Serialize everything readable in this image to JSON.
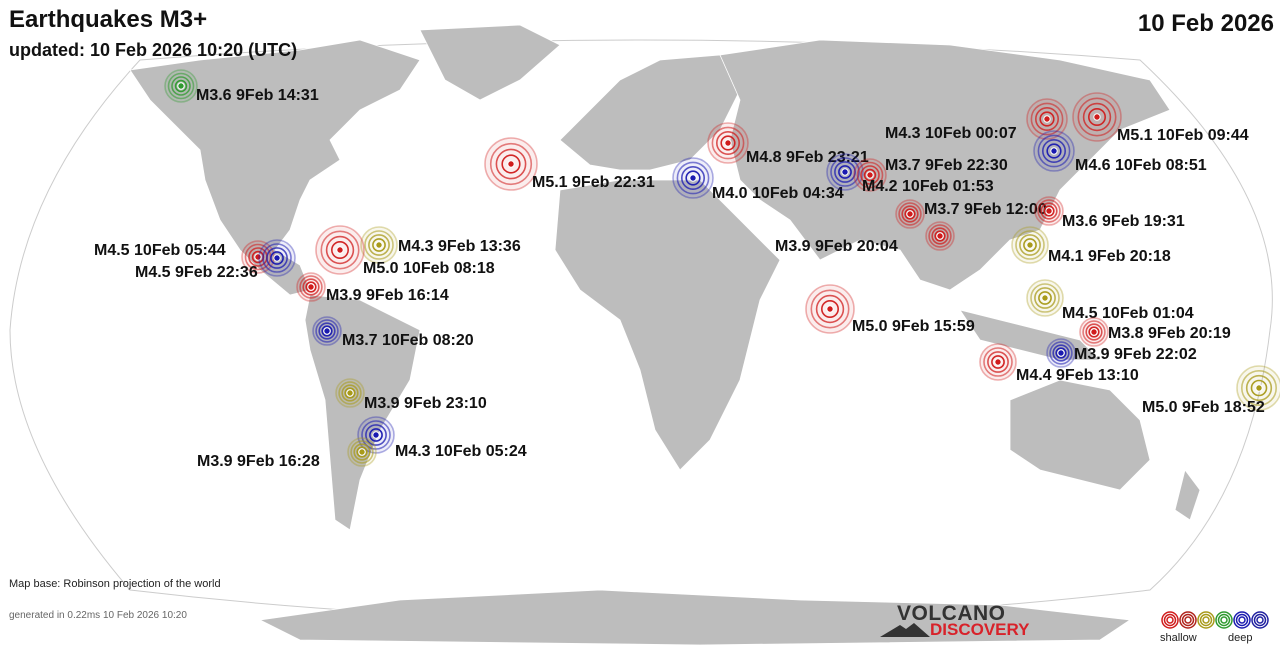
{
  "header": {
    "title": "Earthquakes M3+",
    "updated": "updated: 10 Feb 2026 10:20 (UTC)",
    "date": "10 Feb 2026"
  },
  "footer": {
    "map_base": "Map base: Robinson projection of the world",
    "generated": "generated in 0.22ms 10 Feb 2026 10:20"
  },
  "logo": {
    "line1": "VOLCANO",
    "line2": "DISCOVERY"
  },
  "legend": {
    "shallow": "shallow",
    "deep": "deep",
    "depth_colors": [
      "#d01c1c",
      "#b0231c",
      "#a89a1a",
      "#2f9a2f",
      "#1a1ab0",
      "#2020a0"
    ]
  },
  "colors": {
    "land": "#bdbdbd",
    "ocean": "#ffffff",
    "red": "#d01c1c",
    "olive": "#a89a1a",
    "blue": "#1a1ab0",
    "green": "#2f9a2f"
  },
  "quakes": [
    {
      "label": "M3.6  9Feb 14:31",
      "color": "green"
    },
    {
      "label": "M5.1  9Feb 22:31",
      "color": "red"
    },
    {
      "label": "M4.8  9Feb 23:21",
      "color": "red"
    },
    {
      "label": "M4.0 10Feb 04:34",
      "color": "blue"
    },
    {
      "label": "M4.3 10Feb 00:07",
      "color": "red"
    },
    {
      "label": "M3.7  9Feb 22:30",
      "color": "blue"
    },
    {
      "label": "M4.2 10Feb 01:53",
      "color": "red"
    },
    {
      "label": "M5.1 10Feb 09:44",
      "color": "red"
    },
    {
      "label": "M4.6 10Feb 08:51",
      "color": "blue"
    },
    {
      "label": "M3.7  9Feb 12:00",
      "color": "red"
    },
    {
      "label": "M3.6  9Feb 19:31",
      "color": "red"
    },
    {
      "label": "M3.9  9Feb 20:04",
      "color": "red"
    },
    {
      "label": "M4.1  9Feb 20:18",
      "color": "olive"
    },
    {
      "label": "M4.5 10Feb 05:44",
      "color": "red"
    },
    {
      "label": "M4.5  9Feb 22:36",
      "color": "blue"
    },
    {
      "label": "M4.3  9Feb 13:36",
      "color": "olive"
    },
    {
      "label": "M5.0 10Feb 08:18",
      "color": "red"
    },
    {
      "label": "M3.9  9Feb 16:14",
      "color": "red"
    },
    {
      "label": "M3.7 10Feb 08:20",
      "color": "blue"
    },
    {
      "label": "M5.0  9Feb 15:59",
      "color": "red"
    },
    {
      "label": "M4.5 10Feb 01:04",
      "color": "olive"
    },
    {
      "label": "M3.8  9Feb 20:19",
      "color": "red"
    },
    {
      "label": "M3.9  9Feb 22:02",
      "color": "blue"
    },
    {
      "label": "M4.4  9Feb 13:10",
      "color": "red"
    },
    {
      "label": "M5.0  9Feb 18:52",
      "color": "olive"
    },
    {
      "label": "M3.9  9Feb 23:10",
      "color": "olive"
    },
    {
      "label": "M4.3 10Feb 05:24",
      "color": "blue"
    },
    {
      "label": "M3.9  9Feb 16:28",
      "color": "olive"
    }
  ]
}
